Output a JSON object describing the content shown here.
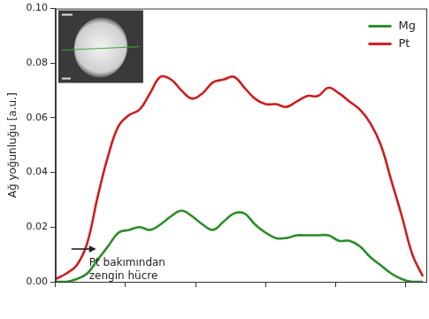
{
  "chart_data": {
    "type": "line",
    "y_label": "Ağ yoğunluğu [a.u.]",
    "x": [
      0,
      0.3,
      0.6,
      0.9,
      1.2,
      1.5,
      1.8,
      2.1,
      2.4,
      2.7,
      3.0,
      3.3,
      3.6,
      3.9,
      4.2,
      4.5,
      4.8,
      5.1,
      5.4,
      5.7,
      6.0,
      6.3,
      6.6,
      6.9,
      7.2,
      7.5,
      7.8,
      8.1,
      8.4,
      8.7,
      9.0,
      9.3,
      9.6,
      9.9,
      10.2,
      10.5
    ],
    "series": [
      {
        "name": "Mg",
        "color": "#2a8c2a",
        "values": [
          0.0,
          0.0,
          0.001,
          0.003,
          0.008,
          0.013,
          0.018,
          0.019,
          0.02,
          0.019,
          0.021,
          0.024,
          0.026,
          0.024,
          0.021,
          0.019,
          0.022,
          0.025,
          0.025,
          0.021,
          0.018,
          0.016,
          0.016,
          0.017,
          0.017,
          0.017,
          0.017,
          0.015,
          0.015,
          0.013,
          0.009,
          0.006,
          0.003,
          0.001,
          0.0,
          0.0
        ]
      },
      {
        "name": "Pt",
        "color": "#d01c1c",
        "values": [
          0.001,
          0.003,
          0.006,
          0.014,
          0.031,
          0.046,
          0.057,
          0.061,
          0.063,
          0.069,
          0.075,
          0.074,
          0.07,
          0.067,
          0.069,
          0.073,
          0.074,
          0.075,
          0.071,
          0.067,
          0.065,
          0.065,
          0.064,
          0.066,
          0.068,
          0.068,
          0.071,
          0.069,
          0.066,
          0.063,
          0.058,
          0.05,
          0.037,
          0.024,
          0.01,
          0.002
        ]
      }
    ],
    "xlim": [
      0,
      10.6
    ],
    "xticks": [
      0,
      2,
      4,
      6,
      8,
      10
    ],
    "ylim": [
      0,
      0.1
    ],
    "yticks": [
      {
        "value": 0,
        "label": "0.00"
      },
      {
        "value": 0.02,
        "label": "0.02"
      },
      {
        "value": 0.04,
        "label": "0.04"
      },
      {
        "value": 0.06,
        "label": "0.06"
      },
      {
        "value": 0.08,
        "label": "0.08"
      },
      {
        "value": 0.1,
        "label": "0.10"
      }
    ],
    "grid": false,
    "legend": "upper right",
    "tick_labels": "y",
    "annotations": [
      {
        "text": [
          "Pt bakımından",
          "zengin hücre"
        ],
        "x": 1.16,
        "y": 0.012
      }
    ]
  }
}
